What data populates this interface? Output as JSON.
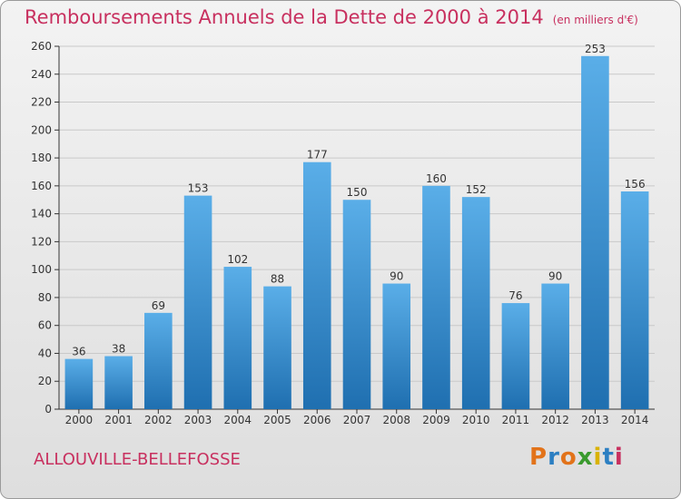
{
  "header": {
    "title": "Remboursements Annuels de la Dette de 2000 à 2014",
    "unit": "(en milliers d'€)"
  },
  "footer": {
    "commune": "ALLOUVILLE-BELLEFOSSE",
    "logo_text": "Proxiti",
    "logo_colors": [
      "#e2731a",
      "#2c7fc2",
      "#e2731a",
      "#3a9a2e",
      "#d9b200",
      "#2c7fc2",
      "#c8305f"
    ]
  },
  "colors": {
    "bar_top": "#5aaee8",
    "bar_bottom": "#1f6fb0",
    "grid": "#c9c9c9",
    "axis": "#333333",
    "text": "#333333",
    "accent": "#c8305f"
  },
  "chart_data": {
    "type": "bar",
    "title": "Remboursements Annuels de la Dette de 2000 à 2014",
    "xlabel": "",
    "ylabel": "",
    "categories": [
      "2000",
      "2001",
      "2002",
      "2003",
      "2004",
      "2005",
      "2006",
      "2007",
      "2008",
      "2009",
      "2010",
      "2011",
      "2012",
      "2013",
      "2014"
    ],
    "values": [
      36,
      38,
      69,
      153,
      102,
      88,
      177,
      150,
      90,
      160,
      152,
      76,
      90,
      253,
      156
    ],
    "ylim": [
      0,
      260
    ],
    "yticks": [
      0,
      20,
      40,
      60,
      80,
      100,
      120,
      140,
      160,
      180,
      200,
      220,
      240,
      260
    ],
    "grid": true,
    "legend": "none"
  }
}
